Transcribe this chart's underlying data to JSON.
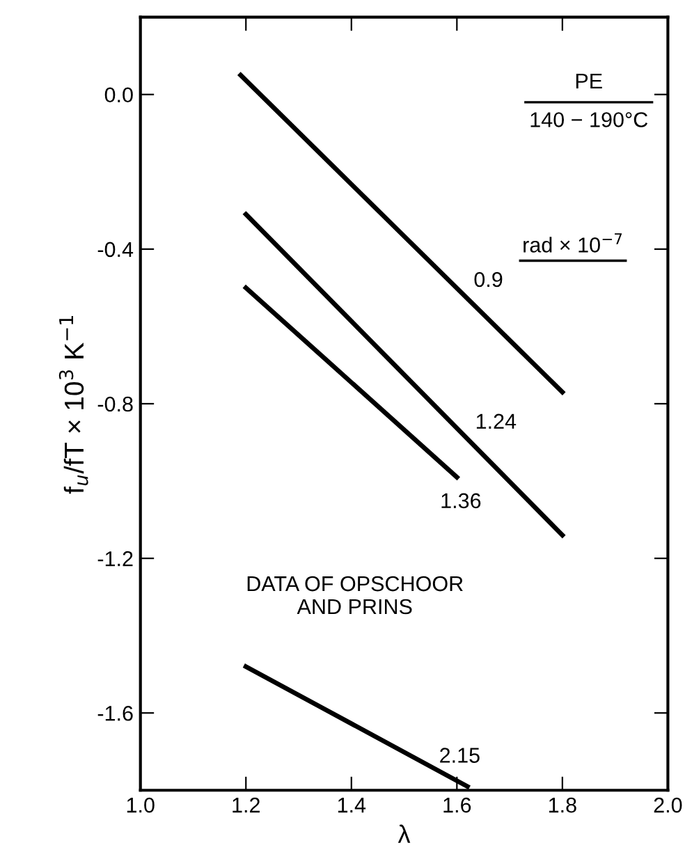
{
  "chart_data": {
    "type": "line",
    "xlabel": "λ",
    "ylabel": "f$_{u}$/fT × 10$^{3}$ K$^{−1}$",
    "xlim": [
      1.0,
      2.0
    ],
    "ylim": [
      -1.8,
      0.2
    ],
    "xticks": [
      {
        "value": 1.0,
        "label": "1.0"
      },
      1.2,
      1.4,
      1.6,
      1.8,
      {
        "value": 2.0,
        "label": "2.0"
      }
    ],
    "yticks": [
      {
        "value": 0.0,
        "label": "0.0"
      },
      -0.4,
      -0.8,
      -1.2,
      -1.6
    ],
    "grid": false,
    "marker": "none",
    "line_style": "solid",
    "legend_title": "rad × 10$^{−7}$",
    "annotations": [
      "PE",
      "140 − 190°C",
      "DATA OF OPSCHOOR\nAND PRINS"
    ],
    "series": [
      {
        "name": "0.9",
        "color": "#000000",
        "x": [
          1.19,
          1.8
        ],
        "values": [
          0.05,
          -0.77
        ]
      },
      {
        "name": "1.24",
        "color": "#000000",
        "x": [
          1.2,
          1.8
        ],
        "values": [
          -0.31,
          -1.14
        ]
      },
      {
        "name": "1.36",
        "color": "#000000",
        "x": [
          1.2,
          1.6
        ],
        "values": [
          -0.5,
          -0.99
        ]
      },
      {
        "name": "2.15",
        "color": "#000000",
        "x": [
          1.2,
          1.62
        ],
        "values": [
          -1.48,
          -1.79
        ]
      }
    ]
  }
}
